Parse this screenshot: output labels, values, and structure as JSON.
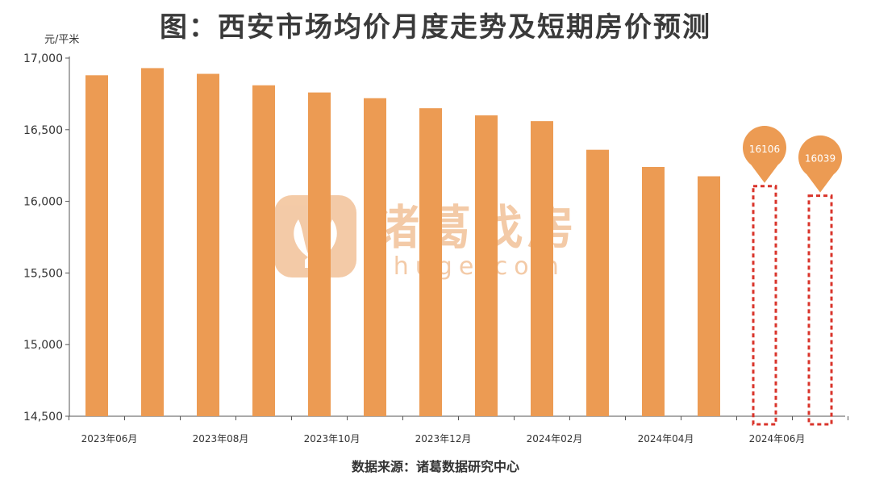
{
  "title": "图：西安市场均价月度走势及短期房价预测",
  "unit": "元/平米",
  "source": "数据来源：诸葛数据研究中心",
  "watermark": {
    "brand": "诸葛找房",
    "url": "zhuge.com",
    "color": "#f0b98a"
  },
  "colors": {
    "bar": "#ec9b53",
    "forecast_border": "#d9342b",
    "bubble": "#ec9b53",
    "axis": "#555555"
  },
  "chart_data": {
    "type": "bar",
    "title": "图：西安市场均价月度走势及短期房价预测",
    "ylabel": "元/平米",
    "ylim": [
      14500,
      17000
    ],
    "yticks": [
      14500,
      15000,
      15500,
      16000,
      16500,
      17000
    ],
    "ytick_labels": [
      "14,500",
      "15,000",
      "15,500",
      "16,000",
      "16,500",
      "17,000"
    ],
    "categories": [
      "2023年06月",
      "2023年07月",
      "2023年08月",
      "2023年09月",
      "2023年10月",
      "2023年11月",
      "2023年12月",
      "2024年01月",
      "2024年02月",
      "2024年03月",
      "2024年04月",
      "2024年05月",
      "2024年06月",
      "2024年07月"
    ],
    "xtick_labels": [
      "2023年06月",
      "",
      "2023年08月",
      "",
      "2023年10月",
      "",
      "2023年12月",
      "",
      "2024年02月",
      "",
      "2024年04月",
      "",
      "2024年06月",
      ""
    ],
    "values": [
      16880,
      16930,
      16890,
      16810,
      16760,
      16720,
      16650,
      16600,
      16560,
      16360,
      16240,
      16175,
      null,
      null
    ],
    "forecast": [
      {
        "category": "2024年06月",
        "value": 16106,
        "label": "16106"
      },
      {
        "category": "2024年07月",
        "value": 16039,
        "label": "16039"
      }
    ],
    "grid": false,
    "legend": "none"
  }
}
